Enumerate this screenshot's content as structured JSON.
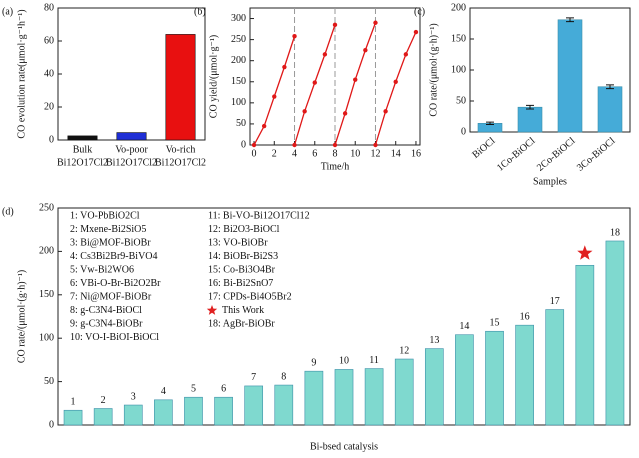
{
  "chart_data": [
    {
      "type": "bar",
      "label": "(a)",
      "ylabel": "CO evolution rate(μmol·g⁻¹h⁻¹)",
      "categories": [
        [
          "Bulk",
          "Bi12O17Cl2"
        ],
        [
          "Vo-poor",
          "Bi12O17Cl2"
        ],
        [
          "Vo-rich",
          "Bi12O17Cl2"
        ]
      ],
      "values": [
        2.5,
        4.5,
        64
      ],
      "colors": [
        "#111111",
        "#1f2fd6",
        "#e81010"
      ],
      "ylim": [
        0,
        80
      ],
      "yticks": [
        0,
        20,
        40,
        60,
        80
      ],
      "category_labels": "below"
    },
    {
      "type": "line",
      "label": "(b)",
      "xlabel": "Time/h",
      "ylabel": "CO yield/(μmol·g⁻¹)",
      "x": [
        0,
        1,
        2,
        3,
        4,
        4,
        4,
        5,
        6,
        7,
        8,
        8,
        8,
        9,
        10,
        11,
        12,
        12,
        12,
        13,
        14,
        15,
        16
      ],
      "values": [
        0,
        45,
        115,
        185,
        258,
        null,
        0,
        80,
        148,
        215,
        285,
        null,
        0,
        75,
        155,
        225,
        290,
        null,
        0,
        80,
        150,
        215,
        268
      ],
      "color": "#e01818",
      "vlines": [
        4,
        8,
        12
      ],
      "xlim": [
        -0.4,
        16.4
      ],
      "xticks": [
        0,
        2,
        4,
        6,
        8,
        10,
        12,
        14,
        16
      ],
      "ylim": [
        0,
        325
      ],
      "yticks": [
        0,
        50,
        100,
        150,
        200,
        250,
        300
      ]
    },
    {
      "type": "bar",
      "label": "(c)",
      "xlabel": "Samples",
      "ylabel": "CO rate/(μmol·(g·h)⁻¹)",
      "categories": [
        "BiOCl",
        "1Co-BiOCl",
        "2Co-BiOCl",
        "3Co-BiOCl"
      ],
      "values": [
        14,
        40,
        181,
        73
      ],
      "errors": [
        2,
        3,
        3,
        3
      ],
      "color": "#45abd8",
      "ylim": [
        0,
        200
      ],
      "yticks": [
        0,
        50,
        100,
        150,
        200
      ],
      "category_labels": "rotated"
    },
    {
      "type": "bar",
      "label": "(d)",
      "xlabel": "Bi-bsed catalysis",
      "ylabel": "CO rate/(μmol·(g·h)⁻¹)",
      "categories": [
        "1",
        "2",
        "3",
        "4",
        "5",
        "6",
        "7",
        "8",
        "9",
        "10",
        "11",
        "12",
        "13",
        "14",
        "15",
        "16",
        "17",
        null,
        "18"
      ],
      "values": [
        17,
        19,
        23,
        29,
        32,
        32,
        45,
        46,
        62,
        64,
        65,
        76,
        88,
        104,
        108,
        115,
        133,
        184,
        212
      ],
      "color": "#7fd9cf",
      "ylim": [
        0,
        250
      ],
      "yticks": [
        0,
        50,
        100,
        150,
        200,
        250
      ],
      "category_labels": "above",
      "legend": [
        "1: VO-PbBiO2Cl",
        "2: Mxene-Bi2SiO5",
        "3: Bi@MOF-BiOBr",
        "4: Cs3Bi2Br9-BiVO4",
        "5: Vw-Bi2WO6",
        "6: VBi-O-Br-Bi2O2Br",
        "7: Ni@MOF-BiOBr",
        "8: g-C3N4-BiOCl",
        "9: g-C3N4-BiOBr",
        "10: VO-I-BiOI-BiOCl",
        "11: Bi-VO-Bi12O17Cl12",
        "12: Bi2O3-BiOCl",
        "13: VO-BiOBr",
        "14: BiOBr-Bi2S3",
        "15: Co-Bi3O4Br",
        "16: Bi-Bi2SnO7",
        "17: CPDs-Bi4O5Br2",
        {
          "label": "This Work",
          "marker": "star"
        },
        "18: AgBr-BiOBr"
      ]
    }
  ]
}
